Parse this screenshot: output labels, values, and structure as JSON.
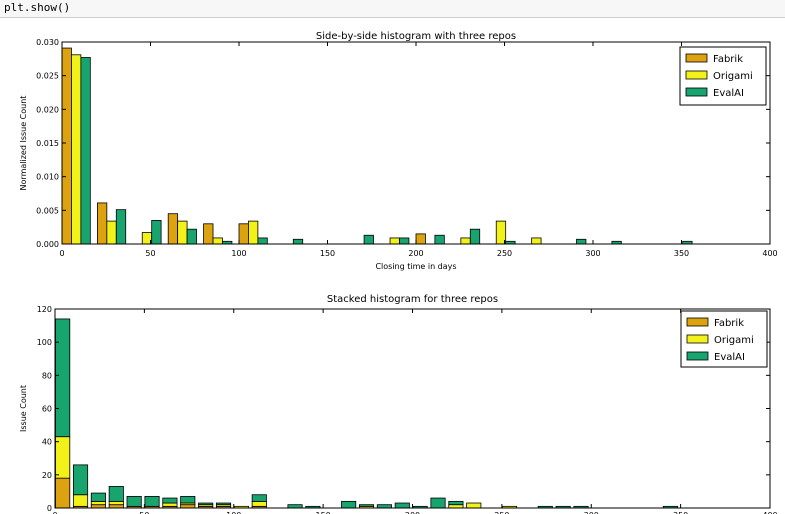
{
  "code": {
    "line": "plt.show()"
  },
  "chart_data": [
    {
      "type": "bar",
      "title": "Side-by-side histogram with three repos",
      "xlabel": "Closing time in days",
      "ylabel": "Normalized Issue Count",
      "xlim": [
        0,
        400
      ],
      "ylim": [
        0,
        0.03
      ],
      "xticks": [
        "0",
        "50",
        "100",
        "150",
        "200",
        "250",
        "300",
        "350",
        "400"
      ],
      "yticks": [
        "0.000",
        "0.005",
        "0.010",
        "0.015",
        "0.020",
        "0.025",
        "0.030"
      ],
      "bin_width": 20,
      "bin_starts": [
        0,
        20,
        40,
        60,
        80,
        100,
        120,
        140,
        160,
        180,
        200,
        220,
        240,
        260,
        280,
        300,
        320,
        340
      ],
      "legend_position": "top-right",
      "grid": false,
      "series": [
        {
          "name": "Fabrik",
          "color": "#dca20f",
          "values": [
            0.0291,
            0.0061,
            0,
            0.0045,
            0.003,
            0.003,
            0,
            0,
            0,
            0,
            0.0015,
            0,
            0,
            0,
            0,
            0,
            0,
            0
          ]
        },
        {
          "name": "Origami",
          "color": "#f2f21a",
          "values": [
            0.0281,
            0.0034,
            0.0017,
            0.0034,
            0.0009,
            0.0034,
            0,
            0,
            0,
            0.0009,
            0,
            0.0009,
            0.0034,
            0.0009,
            0,
            0,
            0,
            0
          ]
        },
        {
          "name": "EvalAI",
          "color": "#17a46f",
          "values": [
            0.0277,
            0.0051,
            0.0035,
            0.0022,
            0.0004,
            0.0009,
            0.0007,
            0,
            0.0013,
            0.0009,
            0.0013,
            0.0022,
            0.0004,
            0,
            0.0007,
            0.0004,
            0,
            0.0004
          ]
        }
      ]
    },
    {
      "type": "bar",
      "stacked": true,
      "title": "Stacked histogram for three repos",
      "xlabel": "",
      "ylabel": "Issue Count",
      "xlim": [
        0,
        400
      ],
      "ylim": [
        0,
        120
      ],
      "xticks": [
        "0",
        "50",
        "100",
        "150",
        "200",
        "250",
        "300",
        "350",
        "400"
      ],
      "yticks": [
        "0",
        "20",
        "40",
        "60",
        "80",
        "100",
        "120"
      ],
      "bin_width": 10,
      "bin_starts": [
        0,
        10,
        20,
        30,
        40,
        50,
        60,
        70,
        80,
        90,
        100,
        110,
        130,
        140,
        160,
        170,
        180,
        190,
        200,
        210,
        220,
        230,
        250,
        270,
        280,
        290,
        340
      ],
      "legend_position": "top-right",
      "grid": false,
      "series": [
        {
          "name": "Fabrik",
          "color": "#dca20f",
          "values": [
            18,
            1,
            2,
            2,
            1,
            1,
            1,
            2,
            1,
            1,
            0,
            1,
            0,
            0,
            0,
            0,
            0,
            0,
            0,
            0,
            0,
            0,
            0,
            0,
            0,
            0,
            0
          ]
        },
        {
          "name": "Origami",
          "color": "#f2f21a",
          "values": [
            25,
            7,
            2,
            2,
            0,
            0,
            2,
            1,
            1,
            1,
            1,
            3,
            0,
            0,
            0,
            1,
            0,
            0,
            0,
            0,
            2,
            3,
            1,
            0,
            0,
            0,
            0
          ]
        },
        {
          "name": "EvalAI",
          "color": "#17a46f",
          "values": [
            71,
            18,
            5,
            9,
            6,
            6,
            3,
            4,
            1,
            1,
            0,
            4,
            2,
            1,
            4,
            1,
            2,
            3,
            1,
            6,
            2,
            0,
            0,
            1,
            1,
            1,
            1
          ]
        }
      ]
    }
  ]
}
